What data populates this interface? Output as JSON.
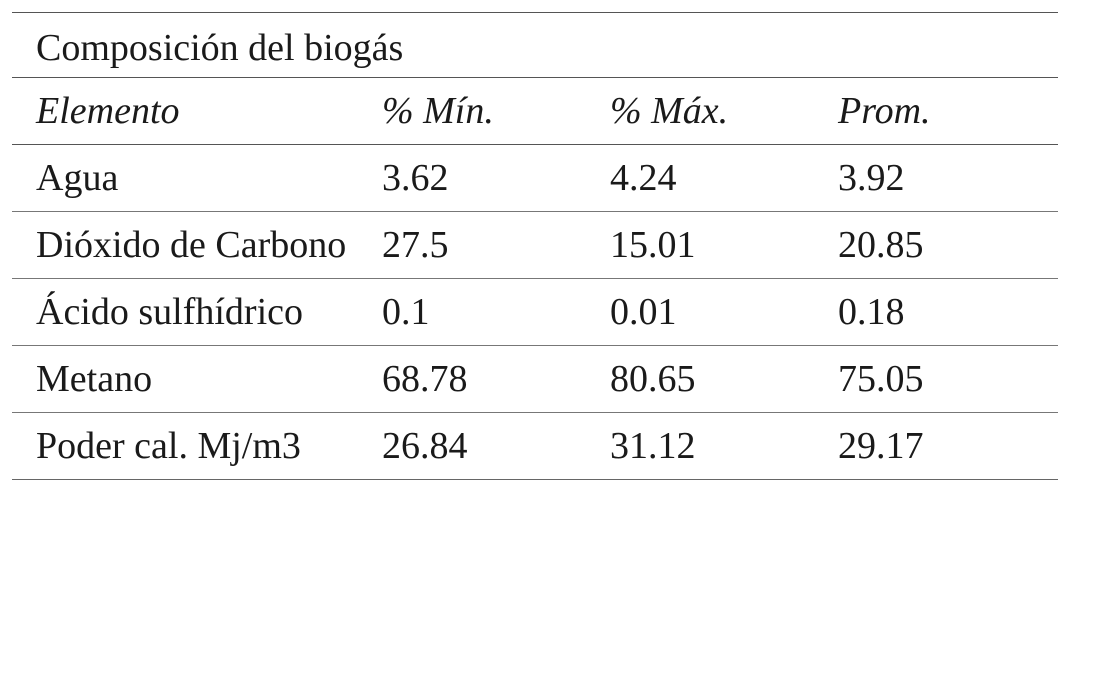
{
  "table": {
    "title": "Composición del biogás",
    "headers": [
      "Elemento",
      "% Mín.",
      "% Máx.",
      "Prom."
    ],
    "rows": [
      [
        "Agua",
        "3.62",
        "4.24",
        "3.92"
      ],
      [
        "Dióxido de Carbono",
        "27.5",
        "15.01",
        "20.85"
      ],
      [
        "Ácido sulfhídrico",
        "0.1",
        "0.01",
        "0.18"
      ],
      [
        "Metano",
        "68.78",
        "80.65",
        "75.05"
      ],
      [
        "Poder cal. Mj/m3",
        "26.84",
        "31.12",
        "29.17"
      ]
    ]
  }
}
